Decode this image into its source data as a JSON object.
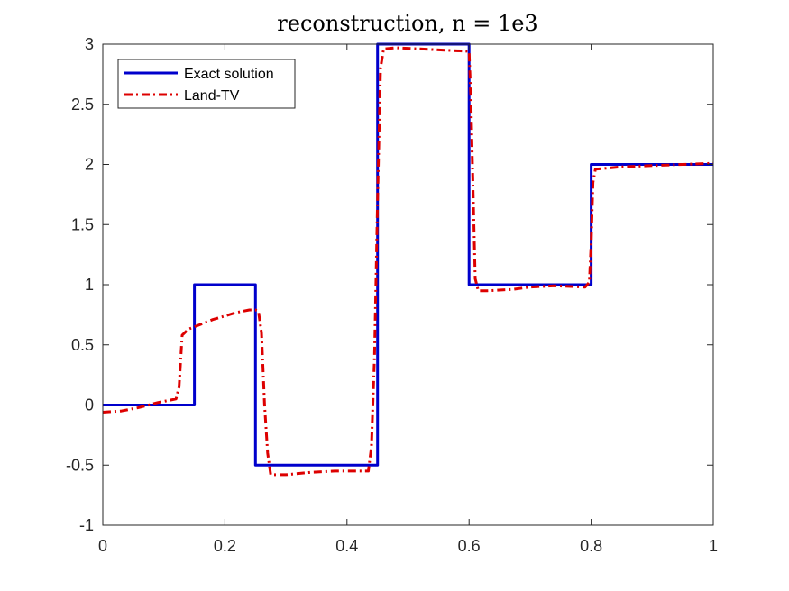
{
  "chart_data": {
    "type": "line",
    "title": "reconstruction, n = 1e3",
    "xlabel": "",
    "ylabel": "",
    "xlim": [
      0,
      1
    ],
    "ylim": [
      -1,
      3
    ],
    "xticks": [
      "0",
      "0.2",
      "0.4",
      "0.6",
      "0.8",
      "1"
    ],
    "xtick_values": [
      0,
      0.2,
      0.4,
      0.6,
      0.8,
      1
    ],
    "yticks": [
      "-1",
      "-0.5",
      "0",
      "0.5",
      "1",
      "1.5",
      "2",
      "2.5",
      "3"
    ],
    "ytick_values": [
      -1,
      -0.5,
      0,
      0.5,
      1,
      1.5,
      2,
      2.5,
      3
    ],
    "grid": false,
    "legend_location": "top-left",
    "series": [
      {
        "name": "Exact solution",
        "color": "#0000cc",
        "style": "solid",
        "x": [
          0,
          0.15,
          0.15,
          0.25,
          0.25,
          0.45,
          0.45,
          0.6,
          0.6,
          0.8,
          0.8,
          1
        ],
        "y": [
          0,
          0,
          1,
          1,
          -0.5,
          -0.5,
          3,
          3,
          1,
          1,
          2,
          2
        ]
      },
      {
        "name": "Land-TV",
        "color": "#dd0000",
        "style": "dash-dot",
        "x": [
          0,
          0.03,
          0.06,
          0.09,
          0.12,
          0.125,
          0.13,
          0.14,
          0.16,
          0.18,
          0.2,
          0.22,
          0.24,
          0.25,
          0.255,
          0.26,
          0.265,
          0.27,
          0.275,
          0.3,
          0.34,
          0.38,
          0.41,
          0.435,
          0.44,
          0.445,
          0.45,
          0.455,
          0.46,
          0.48,
          0.52,
          0.56,
          0.6,
          0.603,
          0.607,
          0.61,
          0.615,
          0.63,
          0.67,
          0.7,
          0.74,
          0.79,
          0.797,
          0.8,
          0.803,
          0.807,
          0.85,
          0.9,
          0.95,
          1
        ],
        "y": [
          -0.06,
          -0.05,
          -0.02,
          0.02,
          0.05,
          0.15,
          0.58,
          0.63,
          0.67,
          0.71,
          0.74,
          0.77,
          0.79,
          0.79,
          0.78,
          0.6,
          0.0,
          -0.4,
          -0.58,
          -0.58,
          -0.56,
          -0.55,
          -0.55,
          -0.55,
          -0.35,
          0.4,
          1.7,
          2.8,
          2.96,
          2.97,
          2.96,
          2.95,
          2.94,
          2.55,
          1.7,
          1.05,
          0.95,
          0.95,
          0.96,
          0.98,
          0.99,
          0.98,
          1.02,
          1.35,
          1.85,
          1.96,
          1.98,
          1.99,
          2.0,
          2.01
        ]
      }
    ]
  }
}
